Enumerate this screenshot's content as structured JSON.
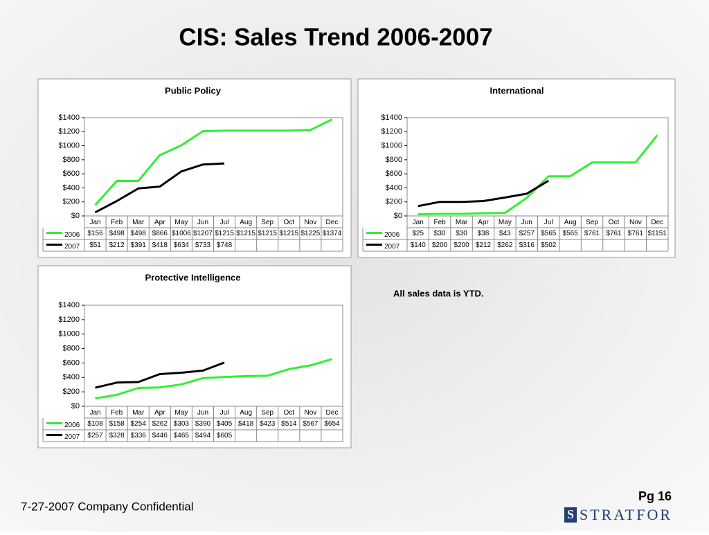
{
  "title": "CIS: Sales Trend 2006-2007",
  "note": "All sales data is YTD.",
  "footer": "7-27-2007  Company Confidential",
  "page": "Pg 16",
  "logo": "STRATFOR",
  "chart_data": [
    {
      "type": "line",
      "title": "Public Policy",
      "categories": [
        "Jan",
        "Feb",
        "Mar",
        "Apr",
        "May",
        "Jun",
        "Jul",
        "Aug",
        "Sep",
        "Oct",
        "Nov",
        "Dec"
      ],
      "series": [
        {
          "name": "2006",
          "color": "#33ee33",
          "values": [
            156,
            498,
            498,
            866,
            1006,
            1207,
            1215,
            1215,
            1215,
            1215,
            1225,
            1374
          ],
          "value_labels": [
            "$156",
            "$498",
            "$498",
            "$866",
            "$1006",
            "$1207",
            "$1215",
            "$1215",
            "$1215",
            "$1215",
            "$1225",
            "$1374"
          ]
        },
        {
          "name": "2007",
          "color": "#000000",
          "values": [
            51,
            212,
            391,
            418,
            634,
            733,
            748,
            null,
            null,
            null,
            null,
            null
          ],
          "value_labels": [
            "$51",
            "$212",
            "$391",
            "$418",
            "$634",
            "$733",
            "$748",
            null,
            null,
            null,
            null,
            null
          ]
        }
      ],
      "ylim": [
        0,
        1400
      ],
      "yticks": [
        {
          "value": 0,
          "label": "$0"
        },
        {
          "value": 200,
          "label": "$200"
        },
        {
          "value": 400,
          "label": "$400"
        },
        {
          "value": 600,
          "label": "$600"
        },
        {
          "value": 800,
          "label": "$800"
        },
        {
          "value": 1000,
          "label": "$1000"
        },
        {
          "value": 1200,
          "label": "$1200"
        },
        {
          "value": 1400,
          "label": "$1400"
        }
      ],
      "grid": false
    },
    {
      "type": "line",
      "title": "International",
      "categories": [
        "Jan",
        "Feb",
        "Mar",
        "Apr",
        "May",
        "Jun",
        "Jul",
        "Aug",
        "Sep",
        "Oct",
        "Nov",
        "Dec"
      ],
      "series": [
        {
          "name": "2006",
          "color": "#33ee33",
          "values": [
            25,
            30,
            30,
            38,
            43,
            257,
            565,
            565,
            761,
            761,
            761,
            1151
          ],
          "value_labels": [
            "$25",
            "$30",
            "$30",
            "$38",
            "$43",
            "$257",
            "$565",
            "$565",
            "$761",
            "$761",
            "$761",
            "$1151"
          ]
        },
        {
          "name": "2007",
          "color": "#000000",
          "values": [
            140,
            200,
            200,
            212,
            262,
            316,
            502,
            null,
            null,
            null,
            null,
            null
          ],
          "value_labels": [
            "$140",
            "$200",
            "$200",
            "$212",
            "$262",
            "$316",
            "$502",
            null,
            null,
            null,
            null,
            null
          ]
        }
      ],
      "ylim": [
        0,
        1400
      ],
      "yticks": [
        {
          "value": 0,
          "label": "$0"
        },
        {
          "value": 200,
          "label": "$200"
        },
        {
          "value": 400,
          "label": "$400"
        },
        {
          "value": 600,
          "label": "$600"
        },
        {
          "value": 800,
          "label": "$800"
        },
        {
          "value": 1000,
          "label": "$1000"
        },
        {
          "value": 1200,
          "label": "$1200"
        },
        {
          "value": 1400,
          "label": "$1400"
        }
      ],
      "grid": false
    },
    {
      "type": "line",
      "title": "Protective Intelligence",
      "categories": [
        "Jan",
        "Feb",
        "Mar",
        "Apr",
        "May",
        "Jun",
        "Jul",
        "Aug",
        "Sep",
        "Oct",
        "Nov",
        "Dec"
      ],
      "series": [
        {
          "name": "2006",
          "color": "#33ee33",
          "values": [
            108,
            158,
            254,
            262,
            303,
            390,
            405,
            418,
            423,
            514,
            567,
            654
          ],
          "value_labels": [
            "$108",
            "$158",
            "$254",
            "$262",
            "$303",
            "$390",
            "$405",
            "$418",
            "$423",
            "$514",
            "$567",
            "$654"
          ]
        },
        {
          "name": "2007",
          "color": "#000000",
          "values": [
            257,
            328,
            336,
            446,
            465,
            494,
            605,
            null,
            null,
            null,
            null,
            null
          ],
          "value_labels": [
            "$257",
            "$328",
            "$336",
            "$446",
            "$465",
            "$494",
            "$605",
            null,
            null,
            null,
            null,
            null
          ]
        }
      ],
      "ylim": [
        0,
        1400
      ],
      "yticks": [
        {
          "value": 0,
          "label": "$0"
        },
        {
          "value": 200,
          "label": "$200"
        },
        {
          "value": 400,
          "label": "$400"
        },
        {
          "value": 600,
          "label": "$600"
        },
        {
          "value": 800,
          "label": "$800"
        },
        {
          "value": 1000,
          "label": "$1000"
        },
        {
          "value": 1200,
          "label": "$1200"
        },
        {
          "value": 1400,
          "label": "$1400"
        }
      ],
      "grid": false
    }
  ]
}
